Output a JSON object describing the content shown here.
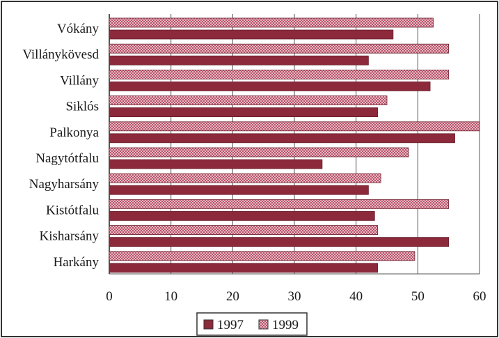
{
  "chart_data": {
    "type": "bar",
    "orientation": "horizontal",
    "categories": [
      "Vókány",
      "Villánykövesd",
      "Villány",
      "Siklós",
      "Palkonya",
      "Nagytótfalu",
      "Nagyharsány",
      "Kistótfalu",
      "Kisharsány",
      "Harkány"
    ],
    "series": [
      {
        "name": "1997",
        "values": [
          46,
          42,
          52,
          43.5,
          56,
          34.5,
          42,
          43,
          55,
          43.5
        ],
        "color": "#8c2a3c",
        "pattern": "solid"
      },
      {
        "name": "1999",
        "values": [
          52.5,
          55,
          55,
          45,
          60,
          48.5,
          44,
          55,
          43.5,
          49.5
        ],
        "color": "#c56a7e",
        "pattern": "checkered"
      }
    ],
    "xlim": [
      0,
      60
    ],
    "x_ticks": [
      "0",
      "10",
      "20",
      "30",
      "40",
      "50",
      "60"
    ],
    "grid": "vertical",
    "legend_position": "bottom"
  }
}
